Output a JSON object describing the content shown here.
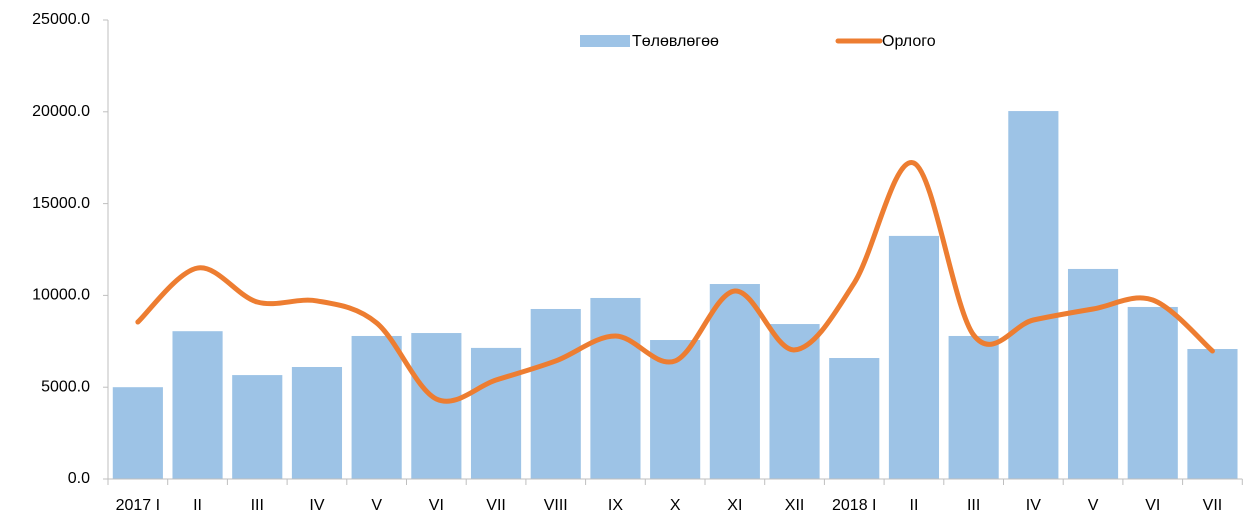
{
  "chart_data": {
    "type": "bar-line",
    "categories": [
      "2017 I",
      "II",
      "III",
      "IV",
      "V",
      "VI",
      "VII",
      "VIII",
      "IX",
      "X",
      "XI",
      "XII",
      "2018 I",
      "II",
      "III",
      "IV",
      "V",
      "VI",
      "VII"
    ],
    "series": [
      {
        "name": "Төлөвлөгөө",
        "type": "bar",
        "color": "#9dc3e6",
        "values": [
          5000,
          8050,
          5660,
          6100,
          7790,
          7950,
          7140,
          9260,
          9860,
          7570,
          10620,
          8440,
          6590,
          13240,
          7790,
          20040,
          11440,
          9370,
          7080
        ]
      },
      {
        "name": "Орлого",
        "type": "line",
        "color": "#ed7d31",
        "values": [
          8550,
          11490,
          9640,
          9700,
          8500,
          4360,
          5390,
          6430,
          7790,
          6430,
          10240,
          7030,
          10680,
          17210,
          7840,
          8660,
          9260,
          9750,
          6970
        ]
      }
    ],
    "ylim": [
      0,
      25000
    ],
    "yticks": [
      {
        "value": 0,
        "label": "0.0"
      },
      {
        "value": 5000,
        "label": "5000.0"
      },
      {
        "value": 10000,
        "label": "10000.0"
      },
      {
        "value": 15000,
        "label": "15000.0"
      },
      {
        "value": 20000,
        "label": "20000.0"
      },
      {
        "value": 25000,
        "label": "25000.0"
      }
    ],
    "legend": "top"
  }
}
